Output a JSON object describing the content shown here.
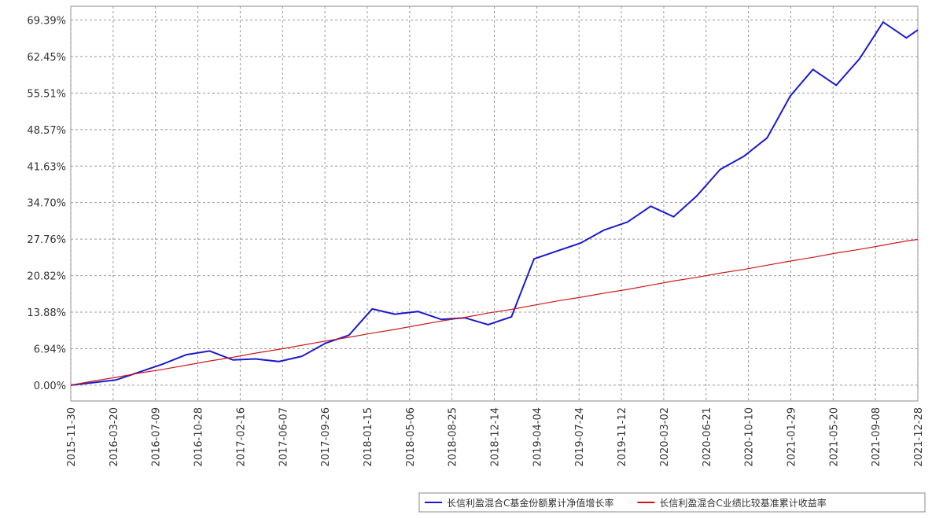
{
  "chart_data": {
    "type": "line",
    "x": [
      "2015-11-30",
      "2016-01-28",
      "2016-03-28",
      "2016-05-28",
      "2016-07-28",
      "2016-09-28",
      "2016-11-28",
      "2017-01-28",
      "2017-03-28",
      "2017-05-28",
      "2017-07-28",
      "2017-09-28",
      "2017-11-28",
      "2018-01-28",
      "2018-03-28",
      "2018-05-28",
      "2018-07-28",
      "2018-09-28",
      "2018-11-28",
      "2019-01-28",
      "2019-03-28",
      "2019-05-28",
      "2019-07-28",
      "2019-09-28",
      "2019-11-28",
      "2020-01-28",
      "2020-03-28",
      "2020-05-28",
      "2020-07-28",
      "2020-09-28",
      "2020-11-28",
      "2021-01-28",
      "2021-03-28",
      "2021-05-28",
      "2021-07-28",
      "2021-09-28",
      "2021-11-28",
      "2021-12-28"
    ],
    "series": [
      {
        "name": "长信利盈混合C基金份额累计净值增长率",
        "color": "#1a1acc",
        "values": [
          0,
          0.5,
          1.0,
          2.5,
          4.0,
          5.8,
          6.5,
          4.8,
          5.0,
          4.5,
          5.5,
          8.0,
          9.5,
          14.5,
          13.5,
          14.0,
          12.5,
          12.8,
          11.5,
          13.0,
          24.0,
          25.5,
          27.0,
          29.5,
          31.0,
          34.0,
          32.0,
          36.0,
          41.0,
          43.5,
          47.0,
          55.0,
          60.0,
          57.0,
          62.0,
          69.0,
          66.0,
          67.5
        ]
      },
      {
        "name": "长信利盈混合C业绩比较基准累计收益率",
        "color": "#cc1a1a",
        "values": [
          0,
          0.8,
          1.5,
          2.3,
          3.0,
          3.8,
          4.6,
          5.3,
          6.1,
          6.8,
          7.6,
          8.4,
          9.1,
          9.9,
          10.6,
          11.4,
          12.2,
          12.9,
          13.7,
          14.4,
          15.2,
          16.0,
          16.7,
          17.5,
          18.2,
          19.0,
          19.8,
          20.5,
          21.3,
          22.0,
          22.8,
          23.6,
          24.3,
          25.1,
          25.8,
          26.6,
          27.4,
          27.7
        ]
      }
    ],
    "xlim": [
      "2015-11-30",
      "2021-12-28"
    ],
    "xticks": [
      "2015-11-30",
      "2016-03-20",
      "2016-07-09",
      "2016-10-28",
      "2017-02-16",
      "2017-06-07",
      "2017-09-26",
      "2018-01-15",
      "2018-05-06",
      "2018-08-25",
      "2018-12-14",
      "2019-04-04",
      "2019-07-24",
      "2019-11-12",
      "2020-03-02",
      "2020-06-21",
      "2020-10-10",
      "2021-01-29",
      "2021-05-20",
      "2021-09-08",
      "2021-12-28"
    ],
    "ylim": [
      -3,
      72
    ],
    "yticks": [
      {
        "value": 0,
        "label": "0.00%"
      },
      {
        "value": 6.94,
        "label": "6.94%"
      },
      {
        "value": 13.88,
        "label": "13.88%"
      },
      {
        "value": 20.82,
        "label": "20.82%"
      },
      {
        "value": 27.76,
        "label": "27.76%"
      },
      {
        "value": 34.7,
        "label": "34.70%"
      },
      {
        "value": 41.63,
        "label": "41.63%"
      },
      {
        "value": 48.57,
        "label": "48.57%"
      },
      {
        "value": 55.51,
        "label": "55.51%"
      },
      {
        "value": 62.45,
        "label": "62.45%"
      },
      {
        "value": 69.39,
        "label": "69.39%"
      }
    ],
    "grid": true
  }
}
